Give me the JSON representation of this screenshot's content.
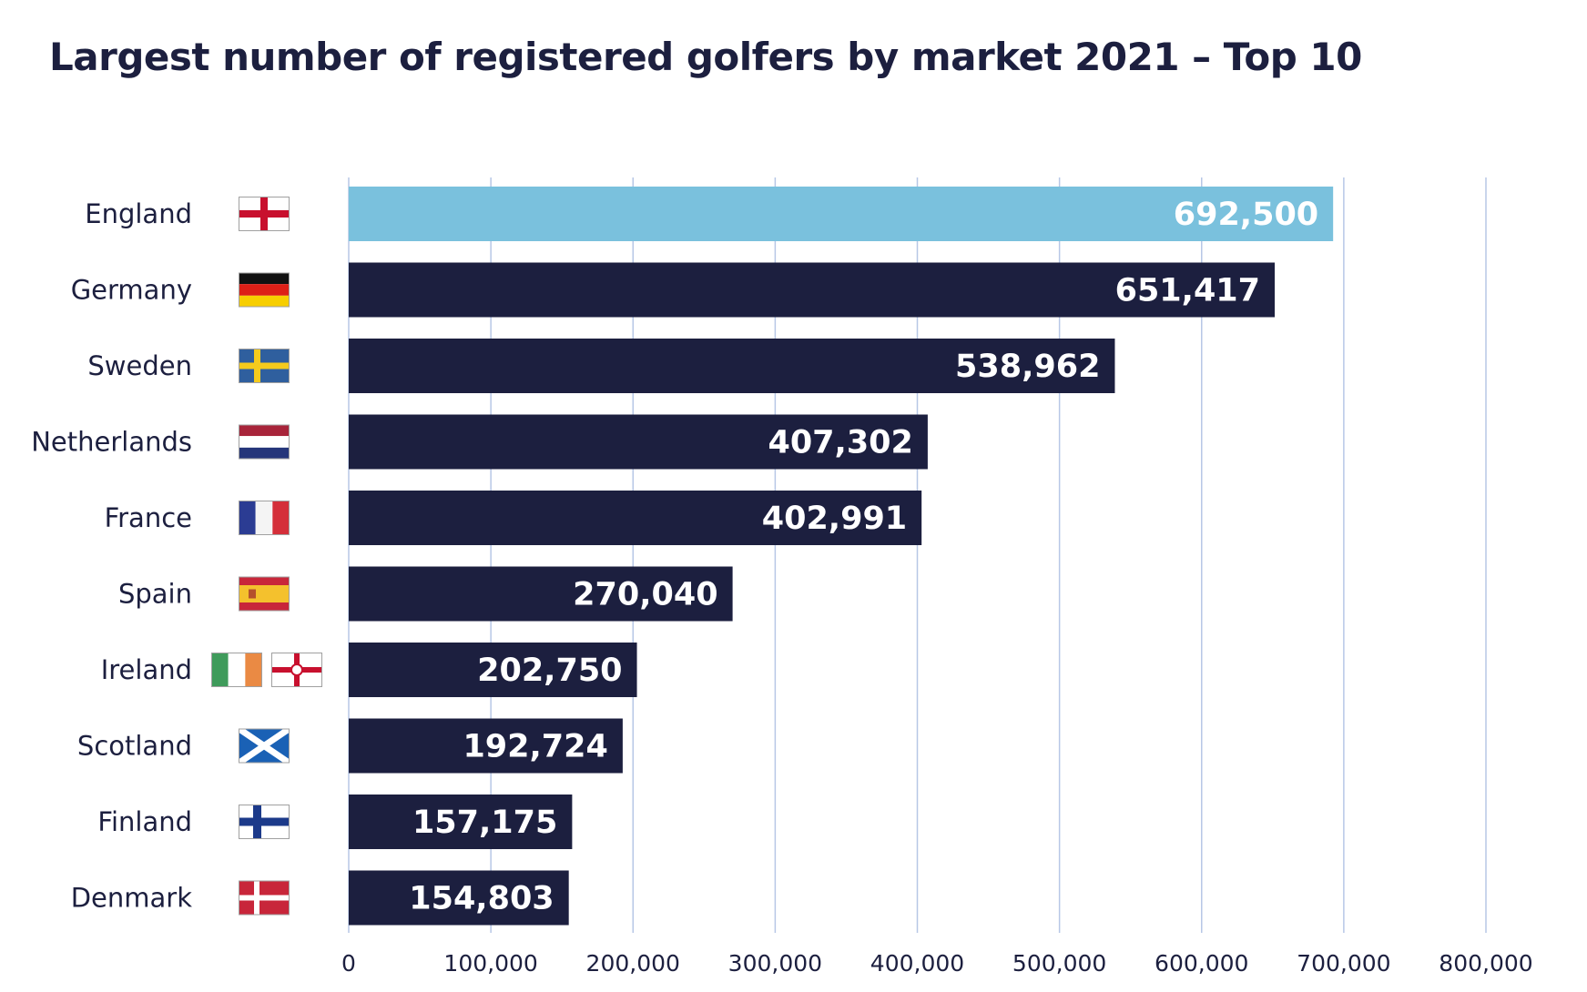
{
  "chart_data": {
    "type": "bar",
    "orientation": "horizontal",
    "title": "Largest number of registered golfers by market 2021 – Top 10",
    "categories": [
      "England",
      "Germany",
      "Sweden",
      "Netherlands",
      "France",
      "Spain",
      "Ireland",
      "Scotland",
      "Finland",
      "Denmark"
    ],
    "values": [
      692500,
      651417,
      538962,
      407302,
      402991,
      270040,
      202750,
      192724,
      157175,
      154803
    ],
    "value_labels": [
      "692,500",
      "651,417",
      "538,962",
      "407,302",
      "402,991",
      "270,040",
      "202,750",
      "192,724",
      "157,175",
      "154,803"
    ],
    "flag_icons": [
      [
        "england-flag-icon"
      ],
      [
        "germany-flag-icon"
      ],
      [
        "sweden-flag-icon"
      ],
      [
        "netherlands-flag-icon"
      ],
      [
        "france-flag-icon"
      ],
      [
        "spain-flag-icon"
      ],
      [
        "ireland-flag-icon",
        "northern-ireland-flag-icon"
      ],
      [
        "scotland-flag-icon"
      ],
      [
        "finland-flag-icon"
      ],
      [
        "denmark-flag-icon"
      ]
    ],
    "xlim": [
      0,
      800000
    ],
    "x_ticks": [
      0,
      100000,
      200000,
      300000,
      400000,
      500000,
      600000,
      700000,
      800000
    ],
    "x_tick_labels": [
      "0",
      "100,000",
      "200,000",
      "300,000",
      "400,000",
      "500,000",
      "600,000",
      "700,000",
      "800,000"
    ],
    "xlabel": "",
    "ylabel": "",
    "grid": "vertical",
    "highlight_category": "England",
    "colors": {
      "bar": "#1c1f3f",
      "highlight": "#7ac1dd",
      "grid": "#b7c7e6",
      "text": "#1c1f3f",
      "value_text": "#ffffff"
    }
  }
}
